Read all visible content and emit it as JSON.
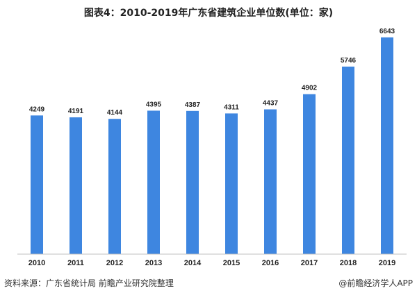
{
  "source_text": "资料来源：广东省统计局 前瞻产业研究院整理",
  "brand_text": "@前瞻经济学人APP",
  "colors": {
    "bar": "#3e86e0",
    "axis": "#bfbfbf"
  },
  "chart_data": {
    "type": "bar",
    "title": "图表4：2010-2019年广东省建筑企业单位数(单位：家)",
    "categories": [
      "2010",
      "2011",
      "2012",
      "2013",
      "2014",
      "2015",
      "2016",
      "2017",
      "2018",
      "2019"
    ],
    "values": [
      4249,
      4191,
      4144,
      4395,
      4387,
      4311,
      4437,
      4902,
      5746,
      6643
    ],
    "ylim": [
      0,
      7000
    ],
    "grid": false,
    "legend": "none"
  }
}
